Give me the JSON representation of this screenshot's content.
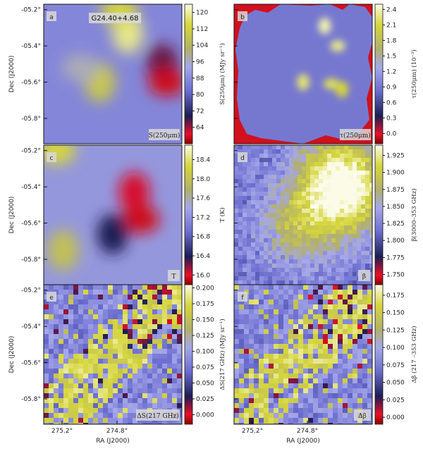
{
  "figure": {
    "title": "G24.40+4.68",
    "xlabel": "RA (J2000)",
    "ylabel": "Dec (J2000)",
    "x_ticks": [
      "275.2°",
      "274.8°"
    ],
    "y_ticks": [
      "-05.2°",
      "-05.4°",
      "-05.6°",
      "-05.8°"
    ]
  },
  "chart_data": [
    {
      "type": "heatmap",
      "panel": "a",
      "quantity_label": "S(250μm)",
      "colorbar_label": "S(250μm) (MJy sr⁻¹)",
      "colorbar_ticks": [
        "120",
        "112",
        "104",
        "96",
        "88",
        "80",
        "72",
        "64"
      ],
      "colorbar_range": [
        56,
        124
      ],
      "blobs": [
        {
          "ra": 274.88,
          "dec": -5.33,
          "level": 0.92
        },
        {
          "ra": 274.92,
          "dec": -5.21,
          "level": 0.85
        },
        {
          "ra": 275.01,
          "dec": -5.6,
          "level": 0.78
        },
        {
          "ra": 275.1,
          "dec": -5.52,
          "level": 0.6
        },
        {
          "ra": 274.72,
          "dec": -5.5,
          "level": 0.15
        },
        {
          "ra": 274.7,
          "dec": -5.6,
          "level": 0.05
        }
      ]
    },
    {
      "type": "heatmap",
      "panel": "b",
      "quantity_label": "τ(250μm)",
      "colorbar_label": "τ(250μm) (10⁻³)",
      "colorbar_ticks": [
        "2.4",
        "2.1",
        "1.8",
        "1.5",
        "1.2",
        "0.9",
        "0.6",
        "0.3",
        "0.0"
      ],
      "colorbar_range": [
        -0.2,
        2.5
      ],
      "blobs": [
        {
          "ra": 274.85,
          "dec": -5.29,
          "level": 0.95
        },
        {
          "ra": 274.79,
          "dec": -5.4,
          "level": 0.92
        },
        {
          "ra": 274.95,
          "dec": -5.6,
          "level": 0.9
        },
        {
          "ra": 274.82,
          "dec": -5.61,
          "level": 0.88
        },
        {
          "ra": 274.77,
          "dec": -5.64,
          "level": 0.85
        }
      ]
    },
    {
      "type": "heatmap",
      "panel": "c",
      "quantity_label": "T",
      "colorbar_label": "T (K)",
      "colorbar_ticks": [
        "18.4",
        "18.0",
        "17.6",
        "17.2",
        "16.8",
        "16.4",
        "16.0"
      ],
      "colorbar_range": [
        15.8,
        18.7
      ],
      "blobs": [
        {
          "ra": 274.85,
          "dec": -5.43,
          "level": 0.08
        },
        {
          "ra": 274.82,
          "dec": -5.58,
          "level": 0.05
        },
        {
          "ra": 274.95,
          "dec": -5.66,
          "level": 0.2
        },
        {
          "ra": 275.21,
          "dec": -5.2,
          "level": 0.85
        },
        {
          "ra": 275.18,
          "dec": -5.75,
          "level": 0.75
        }
      ]
    },
    {
      "type": "heatmap",
      "panel": "d",
      "quantity_label": "β",
      "colorbar_label": "β(3000–353 GHz)",
      "colorbar_ticks": [
        "1.925",
        "1.900",
        "1.875",
        "1.850",
        "1.825",
        "1.800",
        "1.775",
        "1.750"
      ],
      "colorbar_range": [
        1.735,
        1.94
      ],
      "blobs": [
        {
          "ra": 274.8,
          "dec": -5.3,
          "level": 0.9
        },
        {
          "ra": 274.95,
          "dec": -5.58,
          "level": 0.82
        },
        {
          "ra": 274.72,
          "dec": -5.45,
          "level": 0.8
        }
      ]
    },
    {
      "type": "heatmap",
      "panel": "e",
      "quantity_label": "ΔS(217 GHz)",
      "colorbar_label": "ΔS(217 GHz) (MJy sr⁻¹)",
      "colorbar_ticks": [
        "0.200",
        "0.175",
        "0.150",
        "0.125",
        "0.100",
        "0.075",
        "0.050",
        "0.025",
        "0.000"
      ],
      "colorbar_range": [
        -0.015,
        0.205
      ],
      "blobs": [
        {
          "ra": 275.0,
          "dec": -5.62,
          "level": 0.85
        },
        {
          "ra": 274.9,
          "dec": -5.5,
          "level": 0.8
        },
        {
          "ra": 274.78,
          "dec": -5.38,
          "level": 0.1
        }
      ]
    },
    {
      "type": "heatmap",
      "panel": "f",
      "quantity_label": "Δβ",
      "colorbar_label": "Δβ (217 –353 GHz)",
      "colorbar_ticks": [
        "0.175",
        "0.150",
        "0.125",
        "0.100",
        "0.075",
        "0.050",
        "0.025",
        "0.000"
      ],
      "colorbar_range": [
        -0.01,
        0.19
      ],
      "blobs": [
        {
          "ra": 275.0,
          "dec": -5.6,
          "level": 0.7
        },
        {
          "ra": 274.78,
          "dec": -5.38,
          "level": 0.1
        }
      ]
    }
  ]
}
